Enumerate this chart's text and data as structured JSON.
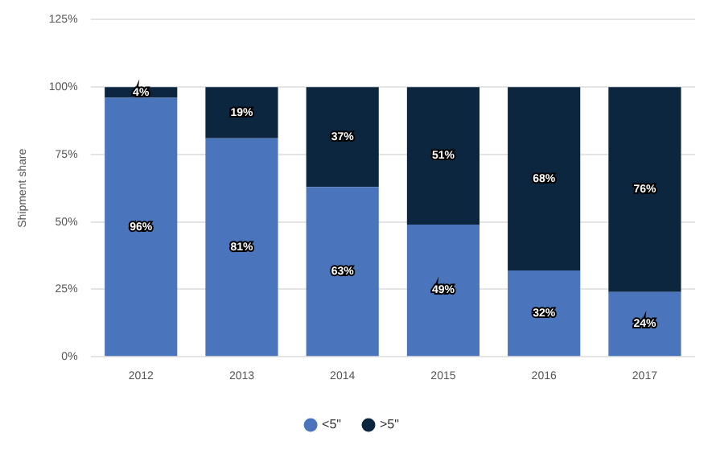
{
  "chart_data": {
    "type": "bar",
    "stacked": true,
    "ylabel": "Shipment share",
    "categories": [
      "2012",
      "2013",
      "2014",
      "2015",
      "2016",
      "2017"
    ],
    "series": [
      {
        "name": "<5\"",
        "color": "#4a74bb",
        "values": [
          96,
          81,
          63,
          49,
          32,
          24
        ],
        "value_labels": [
          "96%",
          "81%",
          "63%",
          "49%",
          "32%",
          "24%"
        ]
      },
      {
        "name": ">5\"",
        "color": "#0d2640",
        "values": [
          4,
          19,
          37,
          51,
          68,
          76
        ],
        "value_labels": [
          "4%",
          "19%",
          "37%",
          "51%",
          "68%",
          "76%"
        ]
      }
    ],
    "ylim": [
      0,
      125
    ],
    "yticks": [
      {
        "value": 0,
        "label": "0%"
      },
      {
        "value": 25,
        "label": "25%"
      },
      {
        "value": 50,
        "label": "50%"
      },
      {
        "value": 75,
        "label": "75%"
      },
      {
        "value": 100,
        "label": "100%"
      },
      {
        "value": 125,
        "label": "125%"
      }
    ],
    "grid": "y",
    "legend": "bottom"
  }
}
